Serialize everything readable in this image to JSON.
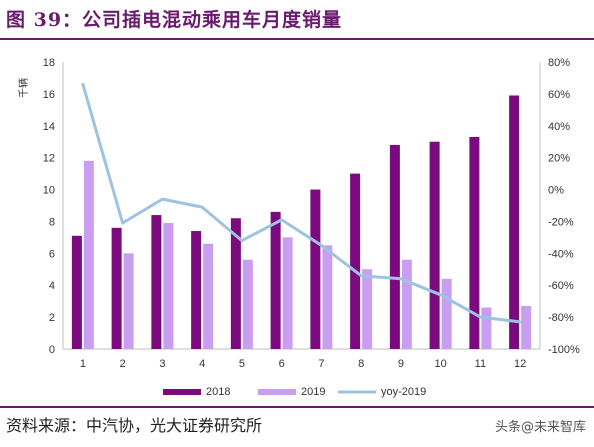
{
  "title": "图 39：公司插电混动乘用车月度销量",
  "source": "资料来源：中汽协，光大证券研究所",
  "watermark": "头条@未来智库",
  "colors": {
    "bar_2018": "#7b0a7e",
    "bar_2019": "#c99ef0",
    "line_yoy": "#9ec3e2",
    "title": "#6a1b6e"
  },
  "chart_data": {
    "type": "bar+line",
    "categories": [
      "1",
      "2",
      "3",
      "4",
      "5",
      "6",
      "7",
      "8",
      "9",
      "10",
      "11",
      "12"
    ],
    "ylabel": "千辆",
    "ylim": [
      0,
      18
    ],
    "yticks": [
      "0",
      "2",
      "4",
      "6",
      "8",
      "10",
      "12",
      "14",
      "16",
      "18"
    ],
    "y2lim": [
      -100,
      80
    ],
    "y2ticks": [
      "-100%",
      "-80%",
      "-60%",
      "-40%",
      "-20%",
      "0%",
      "20%",
      "40%",
      "60%",
      "80%"
    ],
    "series": [
      {
        "name": "2018",
        "type": "bar",
        "values": [
          7.1,
          7.6,
          8.4,
          7.4,
          8.2,
          8.6,
          10.0,
          11.0,
          12.8,
          13.0,
          13.3,
          15.9
        ]
      },
      {
        "name": "2019",
        "type": "bar",
        "values": [
          11.8,
          6.0,
          7.9,
          6.6,
          5.6,
          7.0,
          6.5,
          5.0,
          5.6,
          4.4,
          2.6,
          2.7
        ]
      },
      {
        "name": "yoy-2019",
        "type": "line",
        "axis": "right",
        "values": [
          66,
          -21,
          -6,
          -11,
          -32,
          -19,
          -35,
          -54,
          -56,
          -66,
          -80,
          -83
        ]
      }
    ],
    "legend_position": "bottom",
    "grid": false
  }
}
